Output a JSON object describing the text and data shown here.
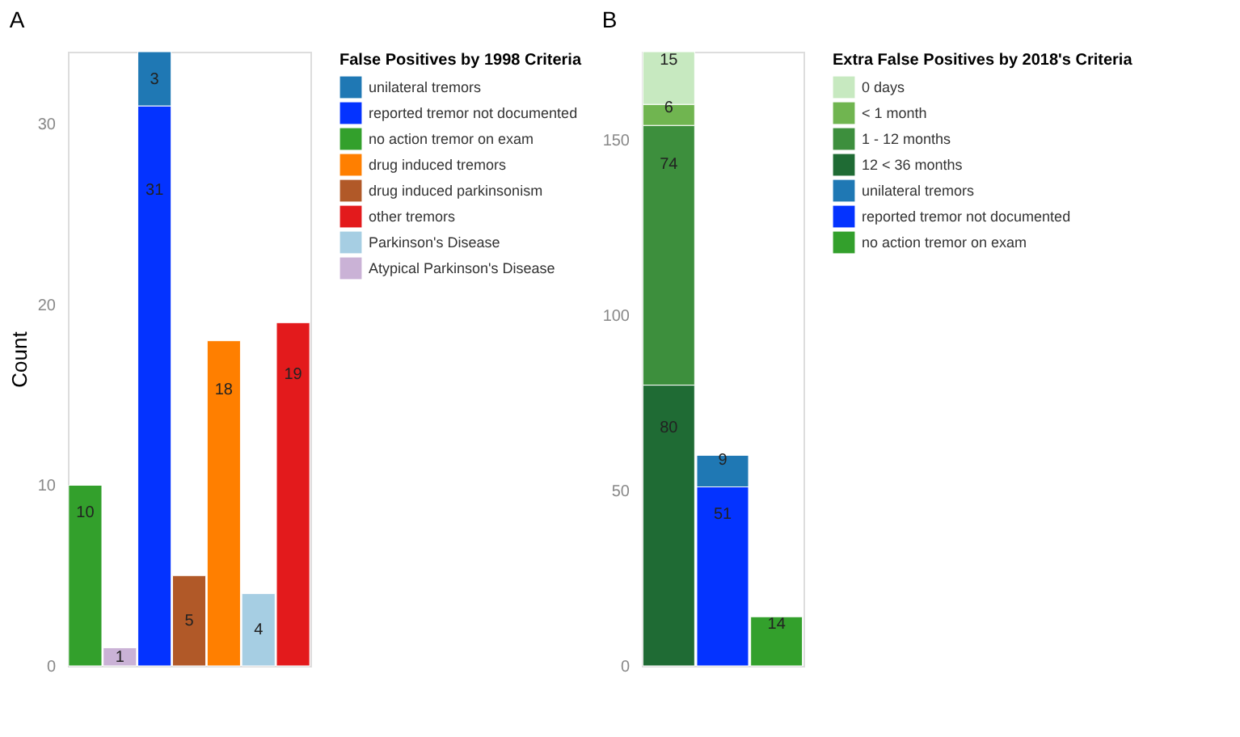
{
  "chart_data": [
    {
      "type": "bar",
      "title": "A",
      "ylabel": "Count",
      "stacked": true,
      "legend": "right",
      "legend_title": "False Positives by 1998 Criteria",
      "data_labels": true,
      "grid": false,
      "ylim": [
        0,
        34
      ],
      "yticks": [
        0,
        10,
        20,
        30
      ],
      "categories": [
        null,
        null,
        null,
        null,
        null,
        null,
        null
      ],
      "series": [
        {
          "name": "Atypical Parkinson's Disease",
          "color": "#cab2d6",
          "values": [
            null,
            1,
            null,
            null,
            null,
            null,
            null
          ]
        },
        {
          "name": "Parkinson's Disease",
          "color": "#a6cee3",
          "values": [
            null,
            null,
            null,
            null,
            null,
            4,
            null
          ]
        },
        {
          "name": "other tremors",
          "color": "#e31a1c",
          "values": [
            null,
            null,
            null,
            null,
            null,
            null,
            19
          ]
        },
        {
          "name": "drug induced parkinsonism",
          "color": "#b15928",
          "values": [
            null,
            null,
            null,
            5,
            null,
            null,
            null
          ]
        },
        {
          "name": "drug induced tremors",
          "color": "#ff7f00",
          "values": [
            null,
            null,
            null,
            null,
            18,
            null,
            null
          ]
        },
        {
          "name": "no action tremor on exam",
          "color": "#33a02c",
          "values": [
            10,
            null,
            null,
            null,
            null,
            null,
            null
          ]
        },
        {
          "name": "reported tremor not documented",
          "color": "#0433ff",
          "values": [
            null,
            null,
            31,
            null,
            null,
            null,
            null
          ]
        },
        {
          "name": "unilateral tremors",
          "color": "#1f78b4",
          "values": [
            null,
            null,
            3,
            null,
            null,
            null,
            null
          ]
        }
      ]
    },
    {
      "type": "bar",
      "title": "B",
      "stacked": true,
      "legend": "right",
      "legend_title": "Extra False Positives by 2018's Criteria",
      "data_labels": true,
      "grid": false,
      "ylim": [
        0,
        175
      ],
      "yticks": [
        0,
        50,
        100,
        150
      ],
      "categories": [
        null,
        null,
        null
      ],
      "series": [
        {
          "name": "no action tremor on exam",
          "color": "#33a02c",
          "values": [
            null,
            null,
            14
          ]
        },
        {
          "name": "reported tremor not documented",
          "color": "#0433ff",
          "values": [
            null,
            51,
            null
          ]
        },
        {
          "name": "unilateral tremors",
          "color": "#1f78b4",
          "values": [
            null,
            9,
            null
          ]
        },
        {
          "name": "12 < 36 months",
          "color": "#1f6b34",
          "values": [
            80,
            null,
            null
          ]
        },
        {
          "name": "1 - 12 months",
          "color": "#3d8f3d",
          "values": [
            74,
            null,
            null
          ]
        },
        {
          "name": "< 1 month",
          "color": "#70b550",
          "values": [
            6,
            null,
            null
          ]
        },
        {
          "name": "0 days",
          "color": "#c7e9c0",
          "values": [
            15,
            null,
            null
          ]
        }
      ]
    }
  ]
}
